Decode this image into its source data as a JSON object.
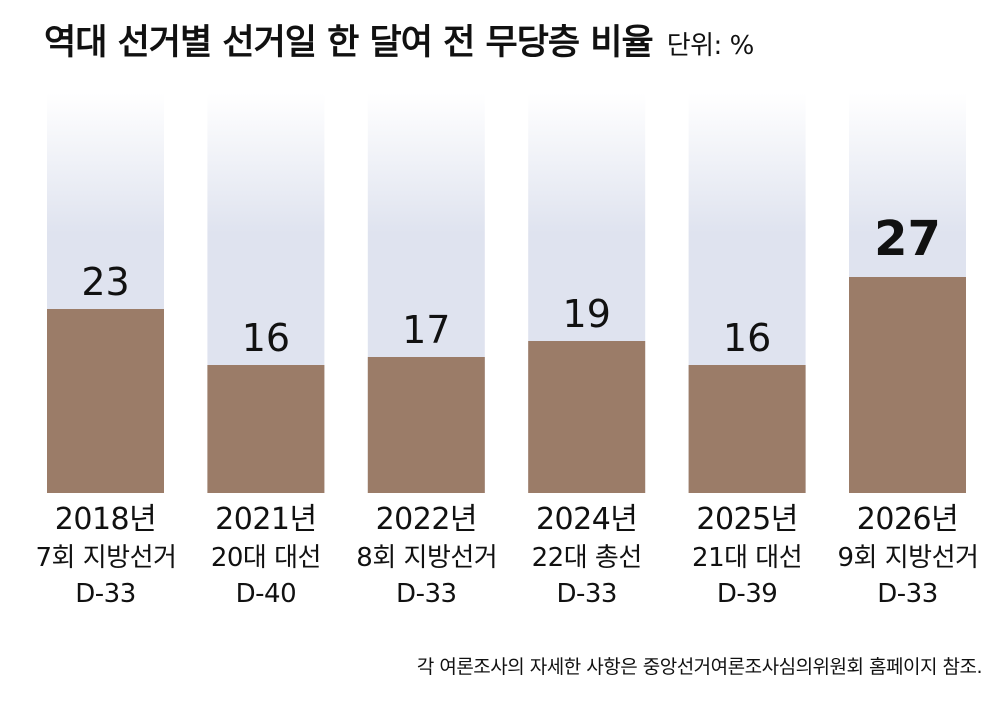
{
  "title": "역대 선거별 선거일 한 달여 전 무당층 비율",
  "unit_label": "단위: %",
  "source_note": "각 여론조사의 자세한 사항은 중앙선거여론조사심의위원회 홈페이지 참조.",
  "colors": {
    "bar": "#9b7c68",
    "track": "#dfe3ef",
    "track_top": "#ffffff",
    "text": "#111111"
  },
  "chart_data": {
    "type": "bar",
    "title": "역대 선거별 선거일 한 달여 전 무당층 비율",
    "unit": "%",
    "ylim": [
      0,
      50
    ],
    "grid": false,
    "legend": "none",
    "categories": [
      {
        "year": "2018년",
        "election": "7회 지방선거",
        "dday": "D-33"
      },
      {
        "year": "2021년",
        "election": "20대 대선",
        "dday": "D-40"
      },
      {
        "year": "2022년",
        "election": "8회 지방선거",
        "dday": "D-33"
      },
      {
        "year": "2024년",
        "election": "22대 총선",
        "dday": "D-33"
      },
      {
        "year": "2025년",
        "election": "21대 대선",
        "dday": "D-39"
      },
      {
        "year": "2026년",
        "election": "9회 지방선거",
        "dday": "D-33"
      }
    ],
    "values": [
      23,
      16,
      17,
      19,
      16,
      27
    ],
    "highlight_index": 5
  }
}
